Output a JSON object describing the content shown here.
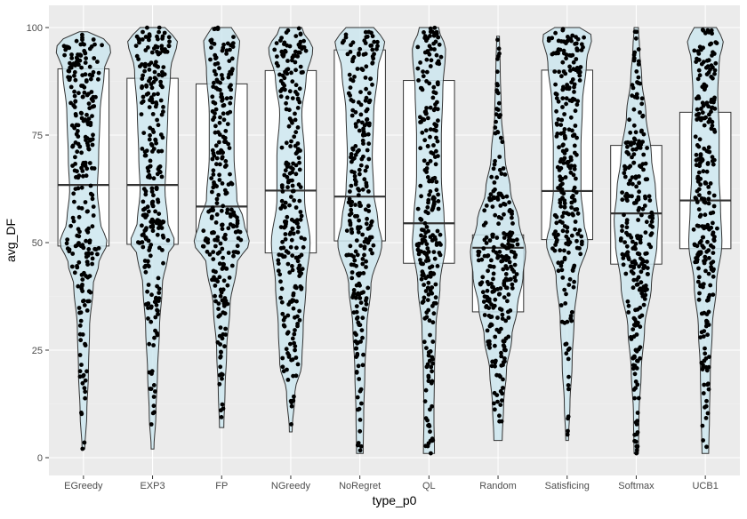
{
  "chart_data": {
    "type": "violin-box-jitter",
    "xlabel": "type_p0",
    "ylabel": "avg_DF",
    "ylim": [
      0,
      100
    ],
    "y_ticks": [
      0,
      25,
      50,
      75,
      100
    ],
    "grid": true,
    "categories": [
      "EGreedy",
      "EXP3",
      "FP",
      "NGreedy",
      "NoRegret",
      "QL",
      "Random",
      "Satisficing",
      "Softmax",
      "UCB1"
    ],
    "series": [
      {
        "category": "EGreedy",
        "min": 2,
        "q1": 49.2,
        "median": 63.4,
        "q3": 90.4,
        "max": 99,
        "density": [
          [
            2,
            0.05
          ],
          [
            10,
            0.12
          ],
          [
            20,
            0.18
          ],
          [
            30,
            0.22
          ],
          [
            40,
            0.35
          ],
          [
            45,
            0.55
          ],
          [
            50,
            0.85
          ],
          [
            55,
            0.6
          ],
          [
            62,
            0.5
          ],
          [
            70,
            0.55
          ],
          [
            80,
            0.6
          ],
          [
            90,
            0.75
          ],
          [
            95,
            1.0
          ],
          [
            98,
            0.7
          ],
          [
            99,
            0.15
          ]
        ]
      },
      {
        "category": "EXP3",
        "min": 2,
        "q1": 49.6,
        "median": 63.4,
        "q3": 88.2,
        "max": 100,
        "density": [
          [
            2,
            0.05
          ],
          [
            10,
            0.12
          ],
          [
            20,
            0.18
          ],
          [
            30,
            0.25
          ],
          [
            40,
            0.35
          ],
          [
            47,
            0.55
          ],
          [
            50,
            0.8
          ],
          [
            55,
            0.55
          ],
          [
            62,
            0.45
          ],
          [
            70,
            0.5
          ],
          [
            80,
            0.55
          ],
          [
            90,
            0.65
          ],
          [
            97,
            0.9
          ],
          [
            100,
            0.45
          ]
        ]
      },
      {
        "category": "FP",
        "min": 7,
        "q1": 50.4,
        "median": 58.4,
        "q3": 86.9,
        "max": 100,
        "density": [
          [
            7,
            0.08
          ],
          [
            15,
            0.12
          ],
          [
            25,
            0.18
          ],
          [
            35,
            0.3
          ],
          [
            45,
            0.55
          ],
          [
            50,
            1.0
          ],
          [
            55,
            0.8
          ],
          [
            60,
            0.55
          ],
          [
            70,
            0.45
          ],
          [
            80,
            0.45
          ],
          [
            90,
            0.55
          ],
          [
            97,
            0.65
          ],
          [
            100,
            0.35
          ]
        ]
      },
      {
        "category": "NGreedy",
        "min": 6,
        "q1": 47.6,
        "median": 62.1,
        "q3": 90.0,
        "max": 100,
        "density": [
          [
            6,
            0.05
          ],
          [
            15,
            0.15
          ],
          [
            22,
            0.4
          ],
          [
            30,
            0.45
          ],
          [
            40,
            0.55
          ],
          [
            50,
            0.7
          ],
          [
            60,
            0.5
          ],
          [
            70,
            0.5
          ],
          [
            80,
            0.4
          ],
          [
            88,
            0.55
          ],
          [
            95,
            0.8
          ],
          [
            100,
            0.4
          ]
        ]
      },
      {
        "category": "NoRegret",
        "min": 1,
        "q1": 50.4,
        "median": 60.7,
        "q3": 94.8,
        "max": 100,
        "density": [
          [
            1,
            0.12
          ],
          [
            10,
            0.14
          ],
          [
            20,
            0.18
          ],
          [
            30,
            0.25
          ],
          [
            40,
            0.4
          ],
          [
            50,
            0.8
          ],
          [
            55,
            0.65
          ],
          [
            62,
            0.5
          ],
          [
            70,
            0.45
          ],
          [
            80,
            0.5
          ],
          [
            90,
            0.65
          ],
          [
            97,
            0.9
          ],
          [
            100,
            0.5
          ]
        ]
      },
      {
        "category": "QL",
        "min": 1,
        "q1": 45.2,
        "median": 54.5,
        "q3": 87.7,
        "max": 100,
        "density": [
          [
            1,
            0.2
          ],
          [
            10,
            0.18
          ],
          [
            20,
            0.2
          ],
          [
            30,
            0.25
          ],
          [
            40,
            0.4
          ],
          [
            50,
            0.6
          ],
          [
            55,
            0.55
          ],
          [
            65,
            0.45
          ],
          [
            75,
            0.45
          ],
          [
            85,
            0.5
          ],
          [
            95,
            0.6
          ],
          [
            100,
            0.35
          ]
        ]
      },
      {
        "category": "Random",
        "min": 4,
        "q1": 33.9,
        "median": 48.8,
        "q3": 51.8,
        "max": 98,
        "density": [
          [
            4,
            0.15
          ],
          [
            12,
            0.2
          ],
          [
            20,
            0.3
          ],
          [
            28,
            0.5
          ],
          [
            35,
            0.7
          ],
          [
            42,
            0.9
          ],
          [
            48,
            1.0
          ],
          [
            55,
            0.75
          ],
          [
            62,
            0.45
          ],
          [
            70,
            0.25
          ],
          [
            80,
            0.12
          ],
          [
            90,
            0.08
          ],
          [
            98,
            0.05
          ]
        ]
      },
      {
        "category": "Satisficing",
        "min": 4,
        "q1": 50.7,
        "median": 62.0,
        "q3": 90.1,
        "max": 100,
        "density": [
          [
            4,
            0.05
          ],
          [
            12,
            0.1
          ],
          [
            22,
            0.18
          ],
          [
            32,
            0.25
          ],
          [
            42,
            0.4
          ],
          [
            50,
            0.75
          ],
          [
            55,
            0.6
          ],
          [
            62,
            0.5
          ],
          [
            72,
            0.5
          ],
          [
            82,
            0.55
          ],
          [
            92,
            0.7
          ],
          [
            98,
            0.9
          ],
          [
            100,
            0.45
          ]
        ]
      },
      {
        "category": "Softmax",
        "min": 1,
        "q1": 45.0,
        "median": 56.8,
        "q3": 72.6,
        "max": 100,
        "density": [
          [
            1,
            0.08
          ],
          [
            10,
            0.1
          ],
          [
            20,
            0.18
          ],
          [
            30,
            0.3
          ],
          [
            40,
            0.55
          ],
          [
            50,
            0.75
          ],
          [
            55,
            0.8
          ],
          [
            62,
            0.7
          ],
          [
            70,
            0.55
          ],
          [
            80,
            0.35
          ],
          [
            88,
            0.2
          ],
          [
            95,
            0.12
          ],
          [
            100,
            0.08
          ]
        ]
      },
      {
        "category": "UCB1",
        "min": 1,
        "q1": 48.6,
        "median": 59.8,
        "q3": 80.3,
        "max": 100,
        "density": [
          [
            1,
            0.12
          ],
          [
            10,
            0.15
          ],
          [
            20,
            0.18
          ],
          [
            30,
            0.25
          ],
          [
            40,
            0.4
          ],
          [
            50,
            0.6
          ],
          [
            58,
            0.55
          ],
          [
            65,
            0.5
          ],
          [
            75,
            0.5
          ],
          [
            85,
            0.45
          ],
          [
            92,
            0.5
          ],
          [
            97,
            0.65
          ],
          [
            100,
            0.4
          ]
        ]
      }
    ],
    "colors": {
      "panel": "#ebebeb",
      "grid_major": "#ffffff",
      "grid_minor": "#f4f4f4",
      "violin_fill": "#cce6ee",
      "violin_stroke": "#333333",
      "box_fill": "#ffffff",
      "box_stroke": "#333333",
      "point": "#000000"
    }
  }
}
